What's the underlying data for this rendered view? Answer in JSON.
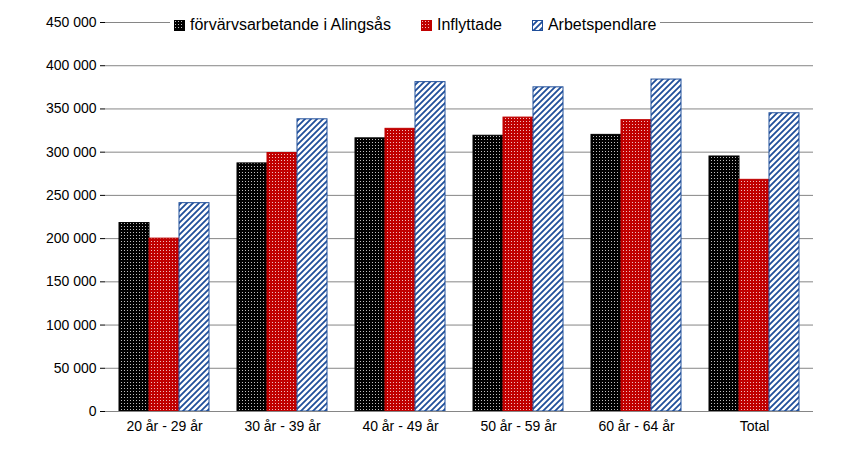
{
  "chart_data": {
    "type": "bar",
    "categories": [
      "20 år - 29 år",
      "30 år - 39 år",
      "40 år - 49 år",
      "50 år - 59 år",
      "60 år - 64 år",
      "Total"
    ],
    "series": [
      {
        "name": "förvärvsarbetande i Alingsås",
        "color": "#000000",
        "values": [
          218000,
          287000,
          316000,
          319000,
          320000,
          295000
        ]
      },
      {
        "name": "Inflyttade",
        "color": "#C00000",
        "values": [
          200000,
          299000,
          327000,
          340000,
          337000,
          268000
        ]
      },
      {
        "name": "Arbetspendlare",
        "color": "#1F4E9A",
        "values": [
          241000,
          338000,
          381000,
          375000,
          384000,
          345000
        ]
      }
    ],
    "ylim": [
      0,
      450000
    ],
    "yticks": [
      0,
      {
        "value": 50000,
        "label": "50 000"
      },
      {
        "value": 100000,
        "label": "100 000"
      },
      {
        "value": 150000,
        "label": "150 000"
      },
      {
        "value": 200000,
        "label": "200 000"
      },
      {
        "value": 250000,
        "label": "250 000"
      },
      {
        "value": 300000,
        "label": "300 000"
      },
      {
        "value": 350000,
        "label": "350 000"
      },
      {
        "value": 400000,
        "label": "400 000"
      },
      {
        "value": 450000,
        "label": "450 000"
      }
    ],
    "grid": true,
    "legend": "top"
  }
}
